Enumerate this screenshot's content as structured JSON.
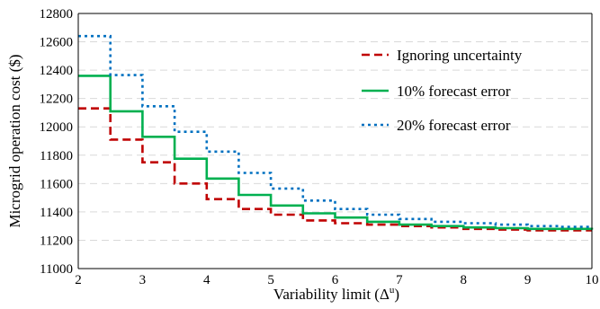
{
  "chart_data": {
    "type": "line",
    "step": true,
    "xlabel": "Variability limit (Δ",
    "xlabel_sup": "u",
    "xlabel_end": ")",
    "ylabel": "Microgrid operation cost ($)",
    "xlim": [
      2,
      10
    ],
    "ylim": [
      11000,
      12800
    ],
    "xticks": [
      2,
      3,
      4,
      5,
      6,
      7,
      8,
      9,
      10
    ],
    "yticks": [
      11000,
      11200,
      11400,
      11600,
      11800,
      12000,
      12200,
      12400,
      12600,
      12800
    ],
    "grid": "horizontal dashed",
    "legend": "top-right",
    "x": [
      2,
      2.5,
      3,
      3.5,
      4,
      4.5,
      5,
      5.5,
      6,
      6.5,
      7,
      7.5,
      8,
      8.5,
      9,
      9.5,
      10
    ],
    "series": [
      {
        "name": "Ignoring uncertainty",
        "color": "#c00000",
        "dash": "dashed",
        "values": [
          12130,
          11910,
          11750,
          11600,
          11490,
          11420,
          11380,
          11340,
          11320,
          11310,
          11300,
          11290,
          11280,
          11275,
          11270,
          11270,
          11270
        ]
      },
      {
        "name": "10% forecast error",
        "color": "#00b050",
        "dash": "solid",
        "values": [
          12360,
          12110,
          11930,
          11775,
          11635,
          11520,
          11445,
          11390,
          11360,
          11330,
          11310,
          11300,
          11290,
          11285,
          11280,
          11280,
          11275
        ]
      },
      {
        "name": "20% forecast error",
        "color": "#0070c0",
        "dash": "dotted",
        "values": [
          12640,
          12365,
          12145,
          11965,
          11825,
          11675,
          11565,
          11480,
          11420,
          11380,
          11350,
          11330,
          11320,
          11310,
          11300,
          11295,
          11290
        ]
      }
    ]
  }
}
